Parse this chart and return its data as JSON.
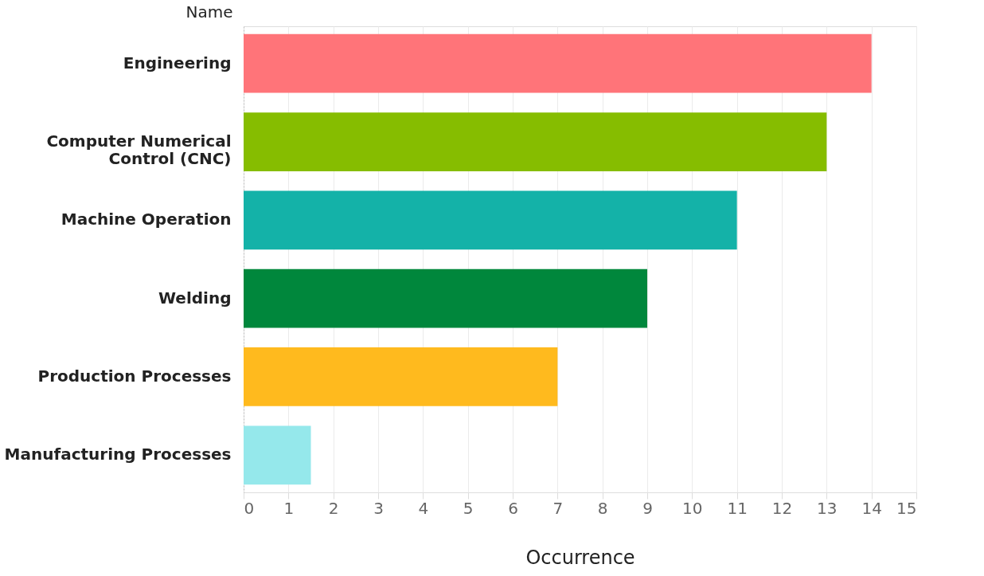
{
  "chart_data": {
    "type": "bar",
    "orientation": "horizontal",
    "xlabel": "Occurrence",
    "ylabel": "Name",
    "categories": [
      "Engineering",
      "Computer Numerical Control (CNC)",
      "Machine Operation",
      "Welding",
      "Production Processes",
      "Manufacturing Processes"
    ],
    "values": [
      14,
      13,
      11,
      9,
      7,
      1.5
    ],
    "colors": [
      "#ff7479",
      "#86bd00",
      "#14b2a8",
      "#00873c",
      "#ffba1e",
      "#95e8eb"
    ],
    "xlim": [
      0,
      15
    ],
    "xticks": [
      0,
      1,
      2,
      3,
      4,
      5,
      6,
      7,
      8,
      9,
      10,
      11,
      12,
      13,
      14,
      15
    ],
    "grid": "x",
    "legend": false
  }
}
